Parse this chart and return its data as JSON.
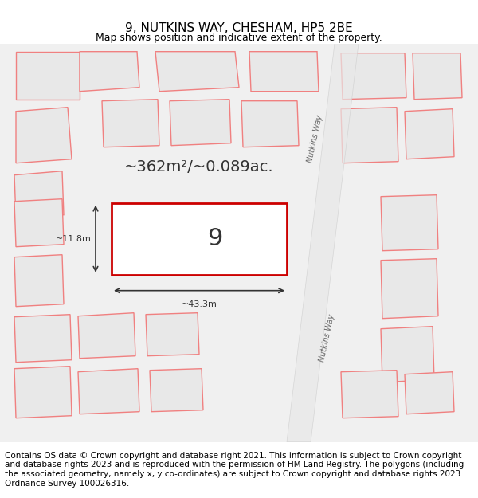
{
  "title": "9, NUTKINS WAY, CHESHAM, HP5 2BE",
  "subtitle": "Map shows position and indicative extent of the property.",
  "footer": "Contains OS data © Crown copyright and database right 2021. This information is subject to Crown copyright and database rights 2023 and is reproduced with the permission of HM Land Registry. The polygons (including the associated geometry, namely x, y co-ordinates) are subject to Crown copyright and database rights 2023 Ordnance Survey 100026316.",
  "area_text": "~362m²/~0.089ac.",
  "width_label": "~43.3m",
  "height_label": "~11.8m",
  "parcel_number": "9",
  "bg_color": "#ffffff",
  "map_bg": "#f9f9f9",
  "building_fill": "#e8e8e8",
  "building_stroke": "#f08080",
  "highlight_fill": "#ffffff",
  "highlight_stroke": "#cc0000",
  "road_label": "Nutkins Way",
  "title_fontsize": 11,
  "subtitle_fontsize": 9,
  "footer_fontsize": 7.5
}
